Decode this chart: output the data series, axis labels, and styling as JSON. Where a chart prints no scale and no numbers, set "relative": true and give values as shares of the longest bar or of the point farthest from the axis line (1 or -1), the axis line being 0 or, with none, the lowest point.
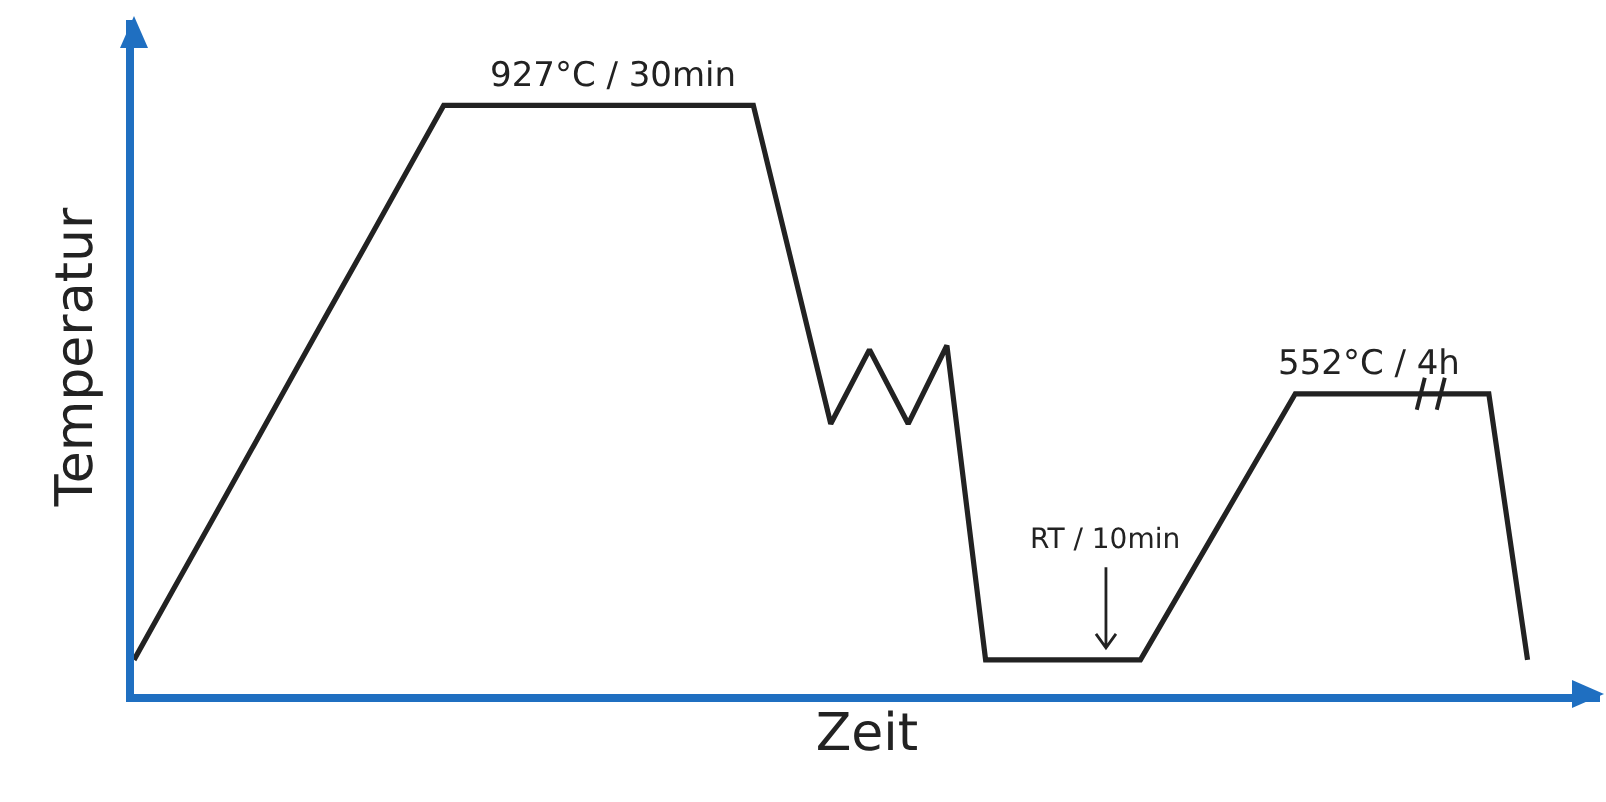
{
  "chart_data": {
    "type": "line",
    "relative": true,
    "xlabel": "Zeit",
    "ylabel": "Temperatur",
    "categories": [
      null,
      null,
      null,
      null,
      null,
      null,
      null,
      null,
      null,
      null,
      null,
      null,
      null,
      null,
      null,
      null,
      null,
      null,
      null,
      null,
      null,
      null,
      null,
      null,
      null,
      null,
      null,
      null,
      null,
      null,
      null,
      null,
      null,
      null,
      null,
      null,
      null
    ],
    "series": [
      {
        "color": "#222222",
        "values": [
          0.058,
          0.176,
          0.293,
          0.411,
          0.529,
          0.647,
          0.764,
          0.882,
          1,
          1,
          1,
          1,
          1,
          1,
          1,
          1,
          1,
          0.73,
          0.459,
          0.585,
          0.459,
          0.592,
          0.058,
          0.058,
          0.058,
          0.058,
          0.058,
          0.171,
          0.284,
          0.397,
          0.51,
          0.51,
          0.51,
          0.51,
          0.51,
          0.51,
          0.058
        ]
      }
    ],
    "annotations": [
      "927°C / 30min",
      "552°C / 4h",
      "RT / 10min"
    ],
    "marker": "none",
    "line_style": "solid",
    "grid": false
  }
}
